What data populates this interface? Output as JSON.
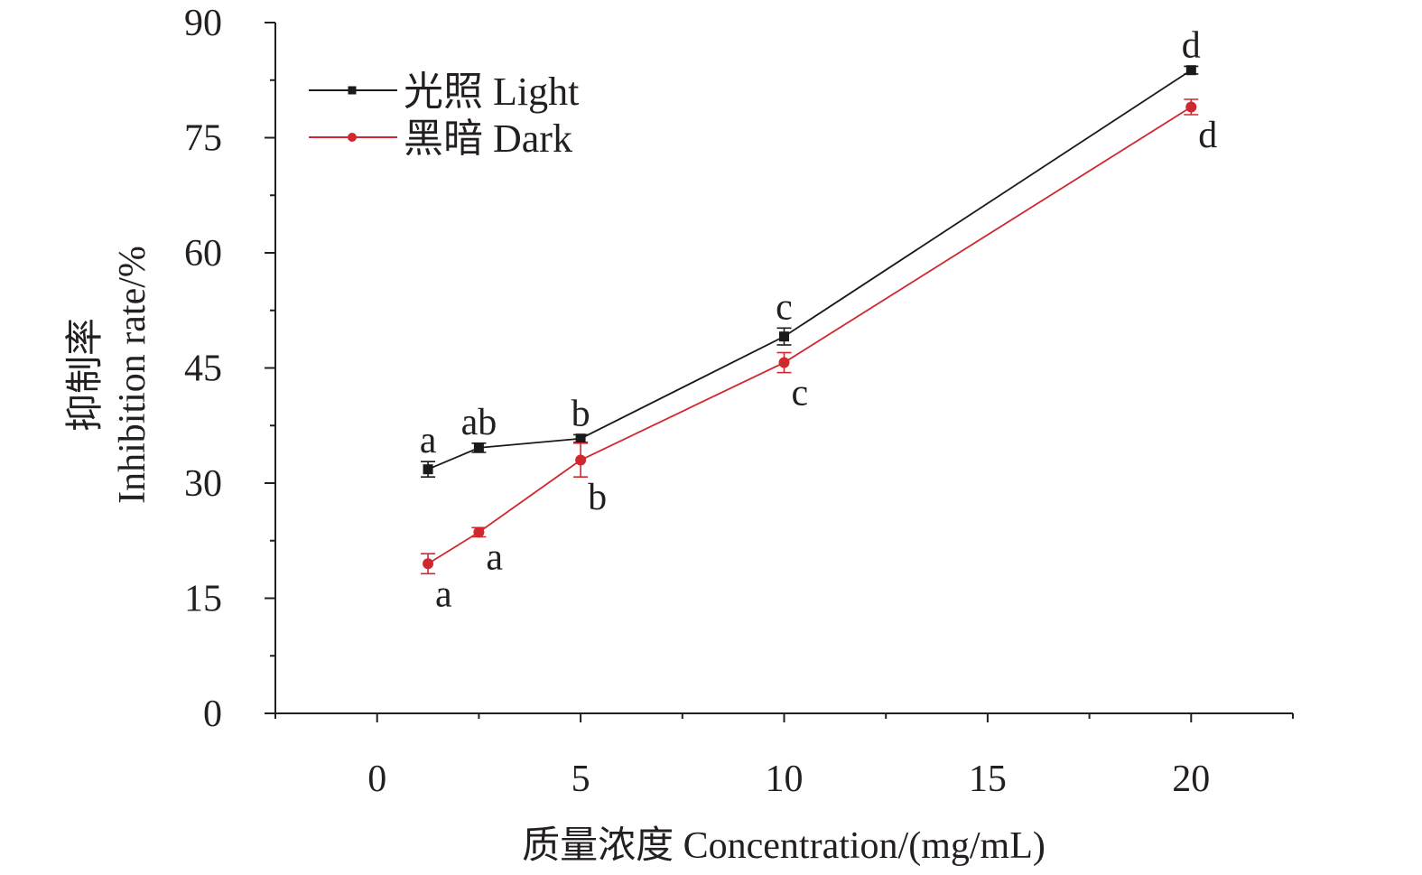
{
  "chart_data": {
    "type": "line",
    "title": "",
    "xlabel": "质量浓度 Concentration/(mg/mL)",
    "ylabel_cn": "抑制率",
    "ylabel_en": "Inhibition rate/%",
    "xlim": [
      -2.5,
      22.5
    ],
    "ylim": [
      0,
      90
    ],
    "xticks": [
      0,
      5,
      10,
      15,
      20
    ],
    "yticks": [
      0,
      15,
      30,
      45,
      60,
      75,
      90
    ],
    "grid": false,
    "legend_position": "top-left",
    "series": [
      {
        "name": "光照 Light",
        "color": "#1a1a1a",
        "marker": "square",
        "x": [
          1.25,
          2.5,
          5,
          10,
          20
        ],
        "values": [
          31.8,
          34.6,
          35.8,
          49.1,
          83.8
        ],
        "errors": [
          1.0,
          0.6,
          0.5,
          1.1,
          0.5
        ],
        "sig_labels": [
          "a",
          "ab",
          "b",
          "c",
          "d"
        ],
        "label_position": "above"
      },
      {
        "name": "黑暗 Dark",
        "color": "#d0282e",
        "marker": "circle",
        "x": [
          1.25,
          2.5,
          5,
          10,
          20
        ],
        "values": [
          19.5,
          23.6,
          33.0,
          45.7,
          79.0
        ],
        "errors": [
          1.3,
          0.6,
          2.2,
          1.3,
          1.0
        ],
        "sig_labels": [
          "a",
          "a",
          "b",
          "c",
          "d"
        ],
        "label_position": "below-right"
      }
    ]
  }
}
